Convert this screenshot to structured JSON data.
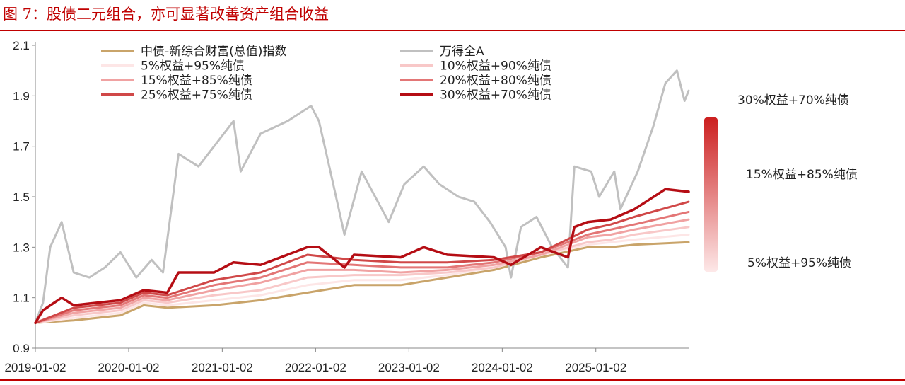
{
  "title": "图 7：股债二元组合，亦可显著改善资产组合收益",
  "chart_data": {
    "type": "line",
    "x_ticks": [
      "2019-01-02",
      "2020-01-02",
      "2021-01-02",
      "2022-01-02",
      "2023-01-02",
      "2024-01-02",
      "2025-01-02"
    ],
    "x_range": [
      "2019-01-02",
      "2025-12-31"
    ],
    "y_ticks": [
      "0.9",
      "1.1",
      "1.3",
      "1.5",
      "1.7",
      "1.9",
      "2.1"
    ],
    "ylim": [
      0.9,
      2.1
    ],
    "legend_position": "top",
    "grid": false,
    "series": [
      {
        "name": "中债-新综合财富(总值)指数",
        "color": "#c9a46a",
        "stroke_width": 3,
        "points": [
          [
            "2019-01-02",
            1.0
          ],
          [
            "2019-06-01",
            1.01
          ],
          [
            "2019-12-01",
            1.03
          ],
          [
            "2020-03-01",
            1.07
          ],
          [
            "2020-06-01",
            1.06
          ],
          [
            "2020-12-01",
            1.07
          ],
          [
            "2021-06-01",
            1.09
          ],
          [
            "2021-12-01",
            1.12
          ],
          [
            "2022-06-01",
            1.15
          ],
          [
            "2022-12-01",
            1.15
          ],
          [
            "2023-06-01",
            1.18
          ],
          [
            "2023-12-01",
            1.21
          ],
          [
            "2024-06-01",
            1.26
          ],
          [
            "2024-12-01",
            1.3
          ],
          [
            "2025-03-01",
            1.3
          ],
          [
            "2025-06-01",
            1.31
          ],
          [
            "2025-12-31",
            1.32
          ]
        ]
      },
      {
        "name": "万得全A",
        "color": "#c0c0c0",
        "stroke_width": 3,
        "points": [
          [
            "2019-01-02",
            1.0
          ],
          [
            "2019-02-01",
            1.08
          ],
          [
            "2019-03-01",
            1.3
          ],
          [
            "2019-04-15",
            1.4
          ],
          [
            "2019-06-01",
            1.2
          ],
          [
            "2019-08-01",
            1.18
          ],
          [
            "2019-10-01",
            1.22
          ],
          [
            "2019-12-01",
            1.28
          ],
          [
            "2020-02-01",
            1.18
          ],
          [
            "2020-04-01",
            1.25
          ],
          [
            "2020-05-15",
            1.2
          ],
          [
            "2020-07-15",
            1.67
          ],
          [
            "2020-10-01",
            1.62
          ],
          [
            "2020-12-01",
            1.7
          ],
          [
            "2021-02-15",
            1.8
          ],
          [
            "2021-03-15",
            1.6
          ],
          [
            "2021-06-01",
            1.75
          ],
          [
            "2021-09-15",
            1.8
          ],
          [
            "2021-12-15",
            1.86
          ],
          [
            "2022-01-15",
            1.8
          ],
          [
            "2022-03-01",
            1.6
          ],
          [
            "2022-04-25",
            1.35
          ],
          [
            "2022-07-01",
            1.6
          ],
          [
            "2022-10-15",
            1.4
          ],
          [
            "2022-12-15",
            1.55
          ],
          [
            "2023-03-01",
            1.62
          ],
          [
            "2023-05-01",
            1.55
          ],
          [
            "2023-07-15",
            1.5
          ],
          [
            "2023-09-15",
            1.48
          ],
          [
            "2023-11-15",
            1.4
          ],
          [
            "2024-01-15",
            1.3
          ],
          [
            "2024-02-05",
            1.18
          ],
          [
            "2024-03-15",
            1.38
          ],
          [
            "2024-05-15",
            1.42
          ],
          [
            "2024-07-15",
            1.3
          ],
          [
            "2024-09-15",
            1.22
          ],
          [
            "2024-10-10",
            1.62
          ],
          [
            "2024-12-15",
            1.6
          ],
          [
            "2025-01-15",
            1.5
          ],
          [
            "2025-03-15",
            1.6
          ],
          [
            "2025-04-08",
            1.45
          ],
          [
            "2025-06-15",
            1.6
          ],
          [
            "2025-08-15",
            1.78
          ],
          [
            "2025-10-01",
            1.95
          ],
          [
            "2025-11-15",
            2.0
          ],
          [
            "2025-12-15",
            1.88
          ],
          [
            "2025-12-31",
            1.92
          ]
        ]
      },
      {
        "name": "5%权益+95%纯债",
        "color": "#fde6e6",
        "stroke_width": 3,
        "points": [
          [
            "2019-01-02",
            1.0
          ],
          [
            "2019-06-01",
            1.02
          ],
          [
            "2019-12-01",
            1.04
          ],
          [
            "2020-03-01",
            1.08
          ],
          [
            "2020-06-01",
            1.07
          ],
          [
            "2020-12-01",
            1.09
          ],
          [
            "2021-06-01",
            1.11
          ],
          [
            "2021-12-01",
            1.15
          ],
          [
            "2022-06-01",
            1.17
          ],
          [
            "2022-12-01",
            1.17
          ],
          [
            "2023-06-01",
            1.19
          ],
          [
            "2023-12-01",
            1.22
          ],
          [
            "2024-06-01",
            1.27
          ],
          [
            "2024-12-01",
            1.31
          ],
          [
            "2025-03-01",
            1.32
          ],
          [
            "2025-06-01",
            1.33
          ],
          [
            "2025-12-31",
            1.35
          ]
        ]
      },
      {
        "name": "10%权益+90%纯债",
        "color": "#f8c8c8",
        "stroke_width": 3,
        "points": [
          [
            "2019-01-02",
            1.0
          ],
          [
            "2019-06-01",
            1.03
          ],
          [
            "2019-12-01",
            1.05
          ],
          [
            "2020-03-01",
            1.09
          ],
          [
            "2020-06-01",
            1.08
          ],
          [
            "2020-12-01",
            1.11
          ],
          [
            "2021-06-01",
            1.13
          ],
          [
            "2021-12-01",
            1.18
          ],
          [
            "2022-06-01",
            1.19
          ],
          [
            "2022-12-01",
            1.19
          ],
          [
            "2023-06-01",
            1.2
          ],
          [
            "2023-12-01",
            1.22
          ],
          [
            "2024-06-01",
            1.27
          ],
          [
            "2024-12-01",
            1.32
          ],
          [
            "2025-03-01",
            1.33
          ],
          [
            "2025-06-01",
            1.35
          ],
          [
            "2025-12-31",
            1.38
          ]
        ]
      },
      {
        "name": "15%权益+85%纯债",
        "color": "#f0a2a2",
        "stroke_width": 3,
        "points": [
          [
            "2019-01-02",
            1.0
          ],
          [
            "2019-06-01",
            1.04
          ],
          [
            "2019-12-01",
            1.06
          ],
          [
            "2020-03-01",
            1.1
          ],
          [
            "2020-06-01",
            1.09
          ],
          [
            "2020-12-01",
            1.13
          ],
          [
            "2021-06-01",
            1.16
          ],
          [
            "2021-12-01",
            1.21
          ],
          [
            "2022-06-01",
            1.21
          ],
          [
            "2022-12-01",
            1.2
          ],
          [
            "2023-06-01",
            1.21
          ],
          [
            "2023-12-01",
            1.23
          ],
          [
            "2024-06-01",
            1.27
          ],
          [
            "2024-12-01",
            1.34
          ],
          [
            "2025-03-01",
            1.35
          ],
          [
            "2025-06-01",
            1.37
          ],
          [
            "2025-12-31",
            1.41
          ]
        ]
      },
      {
        "name": "20%权益+80%纯债",
        "color": "#e37676",
        "stroke_width": 3,
        "points": [
          [
            "2019-01-02",
            1.0
          ],
          [
            "2019-06-01",
            1.05
          ],
          [
            "2019-12-01",
            1.07
          ],
          [
            "2020-03-01",
            1.11
          ],
          [
            "2020-06-01",
            1.1
          ],
          [
            "2020-12-01",
            1.15
          ],
          [
            "2021-06-01",
            1.18
          ],
          [
            "2021-12-01",
            1.24
          ],
          [
            "2022-06-01",
            1.23
          ],
          [
            "2022-12-01",
            1.22
          ],
          [
            "2023-06-01",
            1.22
          ],
          [
            "2023-12-01",
            1.24
          ],
          [
            "2024-06-01",
            1.28
          ],
          [
            "2024-12-01",
            1.35
          ],
          [
            "2025-03-01",
            1.37
          ],
          [
            "2025-06-01",
            1.39
          ],
          [
            "2025-12-31",
            1.44
          ]
        ]
      },
      {
        "name": "25%权益+75%纯债",
        "color": "#d04848",
        "stroke_width": 3,
        "points": [
          [
            "2019-01-02",
            1.0
          ],
          [
            "2019-06-01",
            1.06
          ],
          [
            "2019-12-01",
            1.08
          ],
          [
            "2020-03-01",
            1.12
          ],
          [
            "2020-06-01",
            1.11
          ],
          [
            "2020-12-01",
            1.17
          ],
          [
            "2021-06-01",
            1.2
          ],
          [
            "2021-12-01",
            1.27
          ],
          [
            "2022-06-01",
            1.25
          ],
          [
            "2022-12-01",
            1.24
          ],
          [
            "2023-06-01",
            1.24
          ],
          [
            "2023-12-01",
            1.25
          ],
          [
            "2024-06-01",
            1.28
          ],
          [
            "2024-12-01",
            1.37
          ],
          [
            "2025-03-01",
            1.39
          ],
          [
            "2025-06-01",
            1.42
          ],
          [
            "2025-12-31",
            1.48
          ]
        ]
      },
      {
        "name": "30%权益+70%纯债",
        "color": "#b50d14",
        "stroke_width": 3.5,
        "points": [
          [
            "2019-01-02",
            1.0
          ],
          [
            "2019-02-01",
            1.05
          ],
          [
            "2019-04-15",
            1.1
          ],
          [
            "2019-06-01",
            1.07
          ],
          [
            "2019-12-01",
            1.09
          ],
          [
            "2020-03-01",
            1.13
          ],
          [
            "2020-06-01",
            1.12
          ],
          [
            "2020-07-15",
            1.2
          ],
          [
            "2020-12-01",
            1.2
          ],
          [
            "2021-02-15",
            1.24
          ],
          [
            "2021-06-01",
            1.23
          ],
          [
            "2021-12-01",
            1.3
          ],
          [
            "2022-01-15",
            1.3
          ],
          [
            "2022-04-25",
            1.22
          ],
          [
            "2022-06-01",
            1.27
          ],
          [
            "2022-12-01",
            1.26
          ],
          [
            "2023-03-01",
            1.3
          ],
          [
            "2023-06-01",
            1.27
          ],
          [
            "2023-12-01",
            1.26
          ],
          [
            "2024-02-05",
            1.23
          ],
          [
            "2024-06-01",
            1.3
          ],
          [
            "2024-09-15",
            1.26
          ],
          [
            "2024-10-10",
            1.38
          ],
          [
            "2024-12-01",
            1.4
          ],
          [
            "2025-03-01",
            1.41
          ],
          [
            "2025-06-01",
            1.45
          ],
          [
            "2025-10-01",
            1.53
          ],
          [
            "2025-12-31",
            1.52
          ]
        ]
      }
    ],
    "gradient_bar": {
      "top_label": "30%权益+70%纯债",
      "middle_label": "15%权益+85%纯债",
      "bottom_label": "5%权益+95%纯债",
      "top_color": "#cc1f1f",
      "bottom_color": "#fde8e8"
    }
  }
}
